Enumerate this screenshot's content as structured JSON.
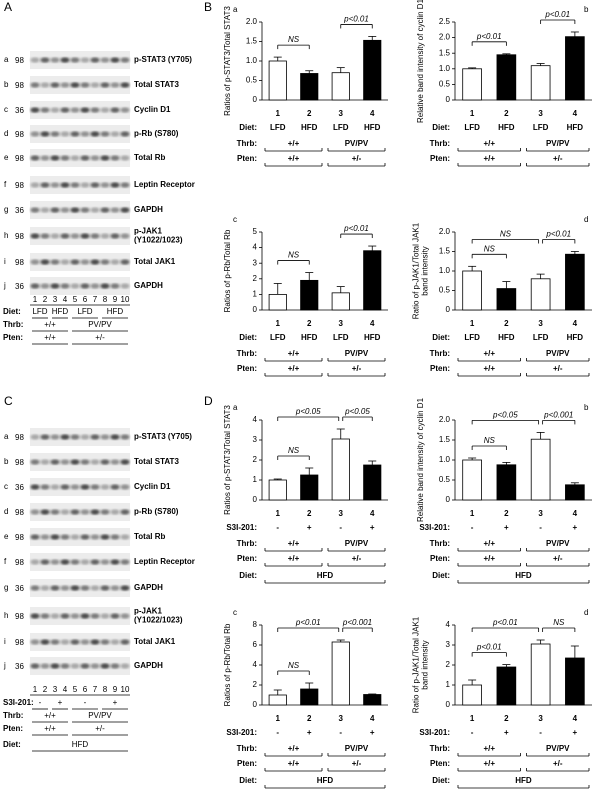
{
  "panel_labels": [
    "A",
    "B",
    "C",
    "D"
  ],
  "blots": [
    {
      "rows": [
        {
          "letter": "a",
          "mw": 98,
          "label": [
            "p-STAT3 (Y705)"
          ]
        },
        {
          "letter": "b",
          "mw": 98,
          "label": [
            "Total STAT3"
          ]
        },
        {
          "letter": "c",
          "mw": 36,
          "label": [
            "Cyclin D1"
          ]
        },
        {
          "letter": "d",
          "mw": 98,
          "label": [
            "p-Rb (S780)"
          ]
        },
        {
          "letter": "e",
          "mw": 98,
          "label": [
            "Total Rb"
          ]
        },
        {
          "letter": "f",
          "mw": 98,
          "label": [
            "Leptin Receptor"
          ]
        },
        {
          "letter": "g",
          "mw": 36,
          "label": [
            "GAPDH"
          ]
        },
        {
          "letter": "h",
          "mw": 98,
          "label": [
            "p-JAK1",
            "(Y1022/1023)"
          ]
        },
        {
          "letter": "i",
          "mw": 98,
          "label": [
            "Total JAK1"
          ]
        },
        {
          "letter": "j",
          "mw": 36,
          "label": [
            "GAPDH"
          ]
        }
      ],
      "lanes": [
        "1",
        "2",
        "3",
        "4",
        "5",
        "6",
        "7",
        "8",
        "9",
        "10"
      ],
      "conditions": [
        {
          "label": "Diet:",
          "groups": [
            "LFD",
            "HFD",
            "LFD",
            "HFD"
          ]
        },
        {
          "label": "Thrb:",
          "groups": [
            "+/+",
            "PV/PV"
          ]
        },
        {
          "label": "Pten:",
          "groups": [
            "+/+",
            "+/-"
          ]
        }
      ]
    },
    {
      "rows": [
        {
          "letter": "a",
          "mw": 98,
          "label": [
            "p-STAT3 (Y705)"
          ]
        },
        {
          "letter": "b",
          "mw": 98,
          "label": [
            "Total STAT3"
          ]
        },
        {
          "letter": "c",
          "mw": 36,
          "label": [
            "Cyclin D1"
          ]
        },
        {
          "letter": "d",
          "mw": 98,
          "label": [
            "p-Rb (S780)"
          ]
        },
        {
          "letter": "e",
          "mw": 98,
          "label": [
            "Total Rb"
          ]
        },
        {
          "letter": "f",
          "mw": 98,
          "label": [
            "Leptin Receptor"
          ]
        },
        {
          "letter": "g",
          "mw": 36,
          "label": [
            "GAPDH"
          ]
        },
        {
          "letter": "h",
          "mw": 98,
          "label": [
            "p-JAK1",
            "(Y1022/1023)"
          ]
        },
        {
          "letter": "i",
          "mw": 98,
          "label": [
            "Total JAK1"
          ]
        },
        {
          "letter": "j",
          "mw": 36,
          "label": [
            "GAPDH"
          ]
        }
      ],
      "lanes": [
        "1",
        "2",
        "3",
        "4",
        "5",
        "6",
        "7",
        "8",
        "9",
        "10"
      ],
      "conditions": [
        {
          "label": "S3I-201:",
          "groups": [
            "-",
            "+",
            "-",
            "+"
          ]
        },
        {
          "label": "Thrb:",
          "groups": [
            "+/+",
            "PV/PV"
          ]
        },
        {
          "label": "Pten:",
          "groups": [
            "+/+",
            "+/-"
          ]
        },
        {
          "label": "Diet:",
          "groups": [
            "HFD"
          ]
        }
      ]
    }
  ],
  "chart_data": [
    {
      "type": "bar",
      "panel": "a",
      "ylabel": [
        "Ratios of p-STAT3/Total STAT3"
      ],
      "categories": [
        "1",
        "2",
        "3",
        "4"
      ],
      "values": [
        1.0,
        0.68,
        0.7,
        1.53
      ],
      "errors": [
        0.1,
        0.07,
        0.13,
        0.1
      ],
      "colors": [
        "#ffffff",
        "#000000",
        "#ffffff",
        "#000000"
      ],
      "ylim": [
        0,
        2
      ],
      "yticks": [
        0,
        0.5,
        {
          "value": 1,
          "label": "1.0"
        },
        1.5,
        {
          "value": 2,
          "label": "2.0"
        }
      ],
      "annotations": [
        {
          "text": "NS",
          "bars": [
            0,
            1
          ]
        },
        {
          "text": "p<0.01",
          "bars": [
            2,
            3
          ]
        }
      ],
      "rows": [
        {
          "label": "Diet:",
          "values": [
            "LFD",
            "HFD",
            "LFD",
            "HFD"
          ]
        },
        {
          "label": "Thrb:",
          "groups": [
            "+/+",
            "PV/PV"
          ]
        },
        {
          "label": "Pten:",
          "groups": [
            "+/+",
            "+/-"
          ]
        }
      ]
    },
    {
      "type": "bar",
      "panel": "b",
      "ylabel": [
        "Relative band intensity of cyclin D1"
      ],
      "categories": [
        "1",
        "2",
        "3",
        "4"
      ],
      "values": [
        1.0,
        1.45,
        1.1,
        2.03
      ],
      "errors": [
        0.03,
        0.03,
        0.07,
        0.15
      ],
      "colors": [
        "#ffffff",
        "#000000",
        "#ffffff",
        "#000000"
      ],
      "ylim": [
        0,
        2.5
      ],
      "yticks": [
        0,
        0.5,
        {
          "value": 1,
          "label": "1.0"
        },
        1.5,
        {
          "value": 2,
          "label": "2.0"
        },
        2.5
      ],
      "annotations": [
        {
          "text": "p<0.01",
          "bars": [
            0,
            1
          ]
        },
        {
          "text": "p<0.01",
          "bars": [
            2,
            3
          ]
        }
      ],
      "rows": [
        {
          "label": "Diet:",
          "values": [
            "LFD",
            "HFD",
            "LFD",
            "HFD"
          ]
        },
        {
          "label": "Thrb:",
          "groups": [
            "+/+",
            "PV/PV"
          ]
        },
        {
          "label": "Pten:",
          "groups": [
            "+/+",
            "+/-"
          ]
        }
      ]
    },
    {
      "type": "bar",
      "panel": "c",
      "ylabel": [
        "Ratios of p-Rb/Total Rb"
      ],
      "categories": [
        "1",
        "2",
        "3",
        "4"
      ],
      "values": [
        1.0,
        1.9,
        1.1,
        3.8
      ],
      "errors": [
        0.7,
        0.5,
        0.4,
        0.3
      ],
      "colors": [
        "#ffffff",
        "#000000",
        "#ffffff",
        "#000000"
      ],
      "ylim": [
        0,
        5
      ],
      "yticks": [
        0,
        1,
        2,
        3,
        4,
        5
      ],
      "annotations": [
        {
          "text": "NS",
          "bars": [
            0,
            1
          ]
        },
        {
          "text": "p<0.01",
          "bars": [
            2,
            3
          ]
        }
      ],
      "rows": [
        {
          "label": "Diet:",
          "values": [
            "LFD",
            "HFD",
            "LFD",
            "HFD"
          ]
        },
        {
          "label": "Thrb:",
          "groups": [
            "+/+",
            "PV/PV"
          ]
        },
        {
          "label": "Pten:",
          "groups": [
            "+/+",
            "+/-"
          ]
        }
      ]
    },
    {
      "type": "bar",
      "panel": "d",
      "ylabel": [
        "Ratio of p-JAK1/Total JAK1",
        "band intensity"
      ],
      "categories": [
        "1",
        "2",
        "3",
        "4"
      ],
      "values": [
        1.0,
        0.55,
        0.8,
        1.43
      ],
      "errors": [
        0.12,
        0.18,
        0.12,
        0.07
      ],
      "colors": [
        "#ffffff",
        "#000000",
        "#ffffff",
        "#000000"
      ],
      "ylim": [
        0,
        2
      ],
      "yticks": [
        0,
        0.5,
        {
          "value": 1,
          "label": "1.0"
        },
        1.5,
        {
          "value": 2,
          "label": "2.0"
        }
      ],
      "annotations": [
        {
          "text": "NS",
          "bars": [
            0,
            1
          ]
        },
        {
          "text": "NS",
          "bars": [
            0,
            2
          ]
        },
        {
          "text": "p<0.01",
          "bars": [
            2,
            3
          ]
        }
      ],
      "rows": [
        {
          "label": "Diet:",
          "values": [
            "LFD",
            "HFD",
            "LFD",
            "HFD"
          ]
        },
        {
          "label": "Thrb:",
          "groups": [
            "+/+",
            "PV/PV"
          ]
        },
        {
          "label": "Pten:",
          "groups": [
            "+/+",
            "+/-"
          ]
        }
      ]
    },
    {
      "type": "bar",
      "panel": "a",
      "ylabel": [
        "Ratios of p-STAT3/Total STAT3"
      ],
      "categories": [
        "1",
        "2",
        "3",
        "4"
      ],
      "values": [
        1.0,
        1.25,
        3.05,
        1.75
      ],
      "errors": [
        0.05,
        0.35,
        0.5,
        0.2
      ],
      "colors": [
        "#ffffff",
        "#000000",
        "#ffffff",
        "#000000"
      ],
      "ylim": [
        0,
        4
      ],
      "yticks": [
        0,
        1,
        2,
        3,
        4
      ],
      "annotations": [
        {
          "text": "NS",
          "bars": [
            0,
            1
          ]
        },
        {
          "text": "p<0.05",
          "bars": [
            0,
            2
          ]
        },
        {
          "text": "p<0.05",
          "bars": [
            2,
            3
          ]
        }
      ],
      "rows": [
        {
          "label": "S3I-201:",
          "values": [
            "-",
            "+",
            "-",
            "+"
          ]
        },
        {
          "label": "Thrb:",
          "groups": [
            "+/+",
            "PV/PV"
          ]
        },
        {
          "label": "Pten:",
          "groups": [
            "+/+",
            "+/-"
          ]
        },
        {
          "label": "Diet:",
          "groups": [
            "HFD"
          ]
        }
      ]
    },
    {
      "type": "bar",
      "panel": "b",
      "ylabel": [
        "Relative band intensity of cyclin D1"
      ],
      "categories": [
        "1",
        "2",
        "3",
        "4"
      ],
      "values": [
        1.0,
        0.88,
        1.52,
        0.38
      ],
      "errors": [
        0.05,
        0.06,
        0.17,
        0.05
      ],
      "colors": [
        "#ffffff",
        "#000000",
        "#ffffff",
        "#000000"
      ],
      "ylim": [
        0,
        2
      ],
      "yticks": [
        0,
        0.5,
        {
          "value": 1,
          "label": "1.0"
        },
        1.5,
        {
          "value": 2,
          "label": "2.0"
        }
      ],
      "annotations": [
        {
          "text": "NS",
          "bars": [
            0,
            1
          ]
        },
        {
          "text": "p<0.05",
          "bars": [
            0,
            2
          ]
        },
        {
          "text": "p<0.001",
          "bars": [
            2,
            3
          ]
        }
      ],
      "rows": [
        {
          "label": "S3I-201:",
          "values": [
            "-",
            "+",
            "-",
            "+"
          ]
        },
        {
          "label": "Thrb:",
          "groups": [
            "+/+",
            "PV/PV"
          ]
        },
        {
          "label": "Pten:",
          "groups": [
            "+/+",
            "+/-"
          ]
        },
        {
          "label": "Diet:",
          "groups": [
            "HFD"
          ]
        }
      ]
    },
    {
      "type": "bar",
      "panel": "c",
      "ylabel": [
        "Ratios of p-Rb/Total Rb"
      ],
      "categories": [
        "1",
        "2",
        "3",
        "4"
      ],
      "values": [
        1.0,
        1.6,
        6.3,
        1.05
      ],
      "errors": [
        0.5,
        0.6,
        0.2,
        0.05
      ],
      "colors": [
        "#ffffff",
        "#000000",
        "#ffffff",
        "#000000"
      ],
      "ylim": [
        0,
        8
      ],
      "yticks": [
        0,
        2,
        4,
        6,
        8
      ],
      "annotations": [
        {
          "text": "NS",
          "bars": [
            0,
            1
          ]
        },
        {
          "text": "p<0.01",
          "bars": [
            0,
            2
          ]
        },
        {
          "text": "p<0.001",
          "bars": [
            2,
            3
          ]
        }
      ],
      "rows": [
        {
          "label": "S3I-201:",
          "values": [
            "-",
            "+",
            "-",
            "+"
          ]
        },
        {
          "label": "Thrb:",
          "groups": [
            "+/+",
            "PV/PV"
          ]
        },
        {
          "label": "Pten:",
          "groups": [
            "+/+",
            "+/-"
          ]
        },
        {
          "label": "Diet:",
          "groups": [
            "HFD"
          ]
        }
      ]
    },
    {
      "type": "bar",
      "panel": "d",
      "ylabel": [
        "Ratio of p-JAK1/Total JAK1",
        "band intensity"
      ],
      "categories": [
        "1",
        "2",
        "3",
        "4"
      ],
      "values": [
        1.0,
        1.9,
        3.05,
        2.35
      ],
      "errors": [
        0.25,
        0.12,
        0.2,
        0.6
      ],
      "colors": [
        "#ffffff",
        "#000000",
        "#ffffff",
        "#000000"
      ],
      "ylim": [
        0,
        4
      ],
      "yticks": [
        0,
        1,
        2,
        3,
        4
      ],
      "annotations": [
        {
          "text": "p<0.01",
          "bars": [
            0,
            1
          ]
        },
        {
          "text": "p<0.01",
          "bars": [
            0,
            2
          ]
        },
        {
          "text": "NS",
          "bars": [
            2,
            3
          ]
        }
      ],
      "rows": [
        {
          "label": "S3I-201:",
          "values": [
            "-",
            "+",
            "-",
            "+"
          ]
        },
        {
          "label": "Thrb:",
          "groups": [
            "+/+",
            "PV/PV"
          ]
        },
        {
          "label": "Pten:",
          "groups": [
            "+/+",
            "+/-"
          ]
        },
        {
          "label": "Diet:",
          "groups": [
            "HFD"
          ]
        }
      ]
    }
  ]
}
